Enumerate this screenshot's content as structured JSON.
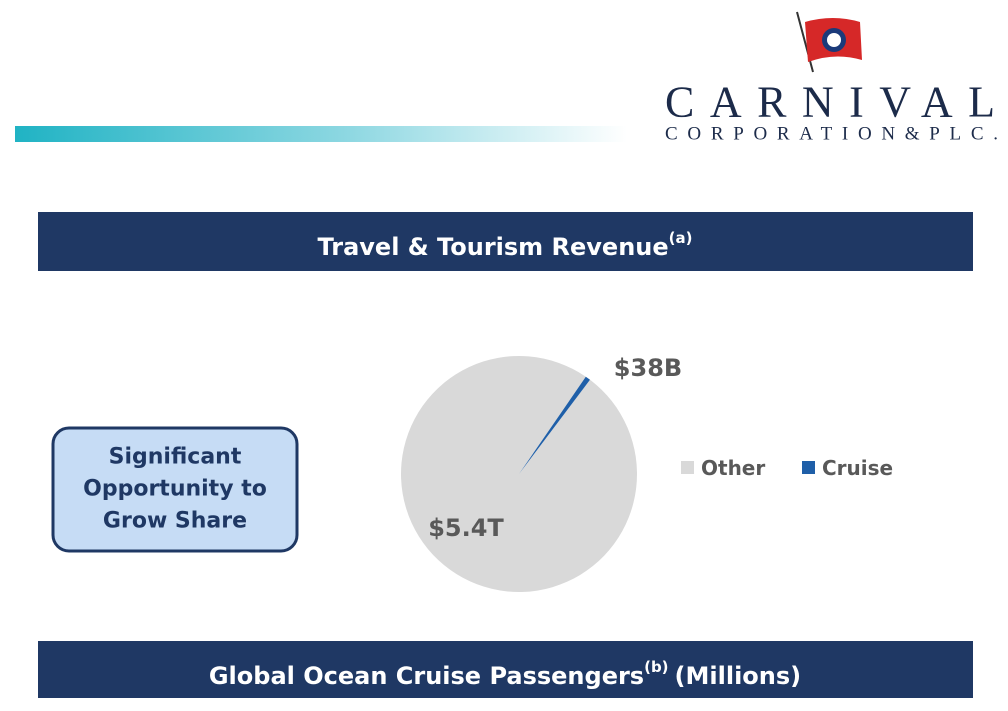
{
  "logo": {
    "name": "CARNIVAL",
    "subtitle": "CORPORATION&PLC."
  },
  "chart_data": {
    "type": "pie",
    "title": "Travel & Tourism Revenue",
    "title_note": "(a)",
    "categories": [
      "Other",
      "Cruise"
    ],
    "values": [
      5400000000000,
      38000000000
    ],
    "value_labels": [
      "$5.4T",
      "$38B"
    ],
    "colors": [
      "#d9d9d9",
      "#1f5fa8"
    ]
  },
  "callout": {
    "lines": [
      "Significant",
      "Opportunity to",
      "Grow Share"
    ]
  },
  "section": {
    "title": "Global Ocean Cruise Passengers",
    "note": "(b)",
    "unit": "(Millions)"
  }
}
